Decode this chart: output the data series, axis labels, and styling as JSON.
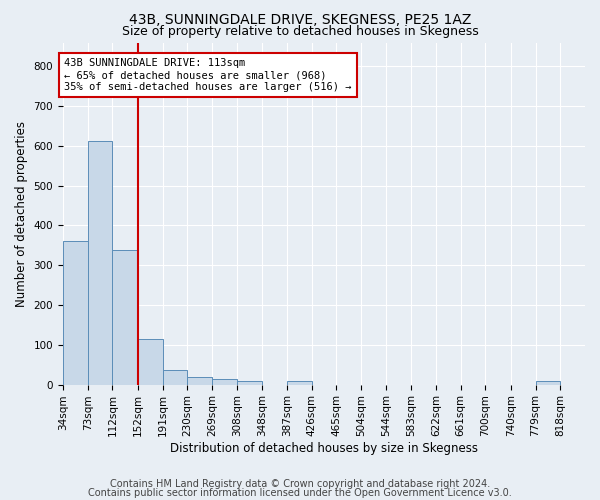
{
  "title": "43B, SUNNINGDALE DRIVE, SKEGNESS, PE25 1AZ",
  "subtitle": "Size of property relative to detached houses in Skegness",
  "xlabel": "Distribution of detached houses by size in Skegness",
  "ylabel": "Number of detached properties",
  "footnote1": "Contains HM Land Registry data © Crown copyright and database right 2024.",
  "footnote2": "Contains public sector information licensed under the Open Government Licence v3.0.",
  "bin_edges": [
    34,
    73,
    112,
    152,
    191,
    230,
    269,
    308,
    348,
    387,
    426,
    465,
    504,
    544,
    583,
    622,
    661,
    700,
    740,
    779,
    818
  ],
  "bin_labels": [
    "34sqm",
    "73sqm",
    "112sqm",
    "152sqm",
    "191sqm",
    "230sqm",
    "269sqm",
    "308sqm",
    "348sqm",
    "387sqm",
    "426sqm",
    "465sqm",
    "504sqm",
    "544sqm",
    "583sqm",
    "622sqm",
    "661sqm",
    "700sqm",
    "740sqm",
    "779sqm",
    "818sqm"
  ],
  "bar_heights": [
    360,
    612,
    338,
    115,
    36,
    20,
    15,
    10,
    0,
    8,
    0,
    0,
    0,
    0,
    0,
    0,
    0,
    0,
    0,
    8
  ],
  "bar_color": "#c8d8e8",
  "bar_edge_color": "#5b8db8",
  "red_line_bin_index": 2,
  "ylim": [
    0,
    860
  ],
  "yticks": [
    0,
    100,
    200,
    300,
    400,
    500,
    600,
    700,
    800
  ],
  "annotation_text": "43B SUNNINGDALE DRIVE: 113sqm\n← 65% of detached houses are smaller (968)\n35% of semi-detached houses are larger (516) →",
  "annotation_box_color": "#ffffff",
  "annotation_box_edge": "#cc0000",
  "background_color": "#e8eef4",
  "grid_color": "#ffffff",
  "title_fontsize": 10,
  "subtitle_fontsize": 9,
  "axis_label_fontsize": 8.5,
  "tick_fontsize": 7.5,
  "footnote_fontsize": 7
}
